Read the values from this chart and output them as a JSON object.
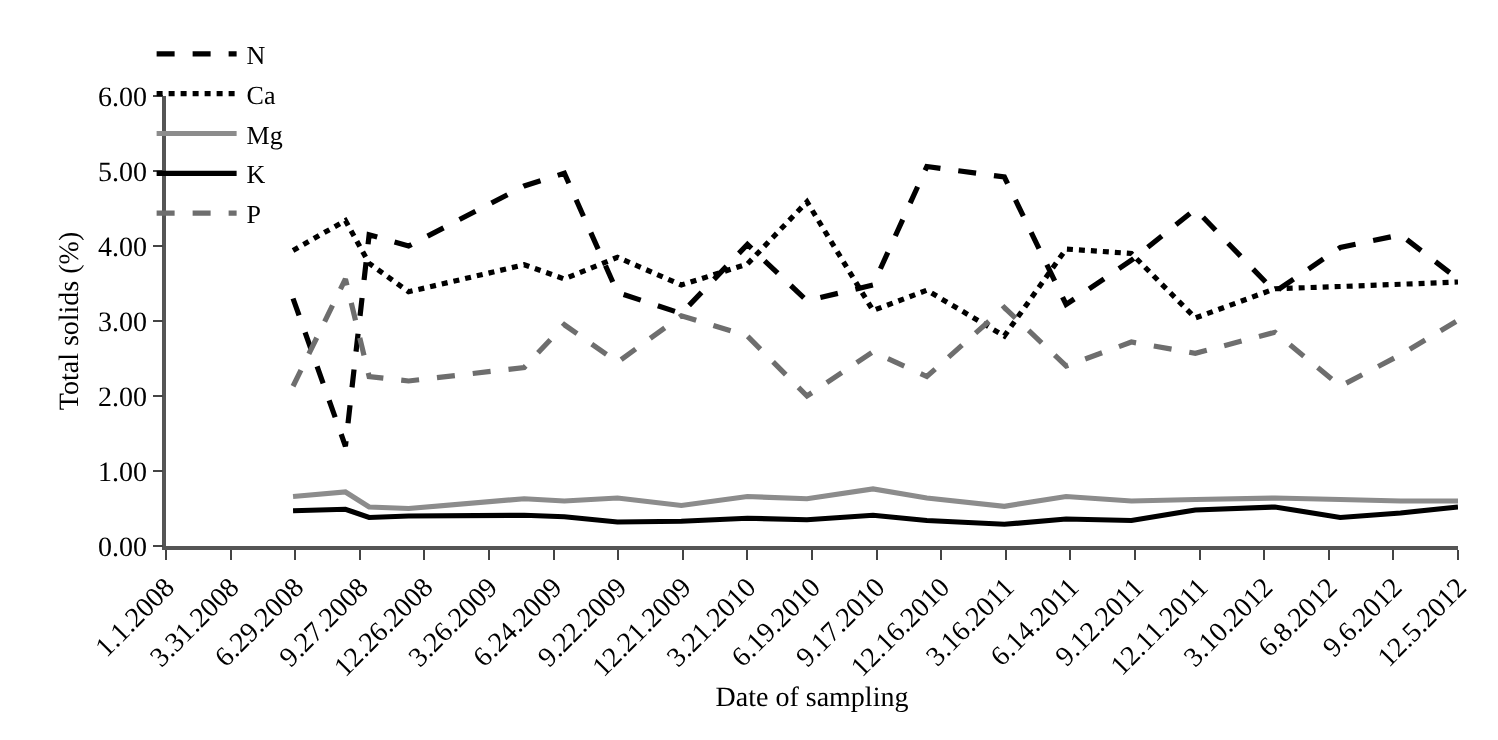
{
  "chart_data": {
    "type": "line",
    "xlabel": "Date of sampling",
    "ylabel": "Total solids (%)",
    "x": [
      "2008-06-26",
      "2008-09-07",
      "2008-10-10",
      "2008-12-04",
      "2009-05-14",
      "2009-07-09",
      "2009-09-21",
      "2009-12-19",
      "2010-03-21",
      "2010-06-12",
      "2010-09-12",
      "2010-11-26",
      "2011-03-14",
      "2011-06-08",
      "2011-09-07",
      "2011-12-05",
      "2012-03-25",
      "2012-06-24",
      "2012-09-16",
      "2012-12-05"
    ],
    "series": [
      {
        "name": "N",
        "color": "#000000",
        "line_style": "dashed",
        "values": [
          3.3,
          1.33,
          4.15,
          4.0,
          4.8,
          4.97,
          3.38,
          3.1,
          4.02,
          3.27,
          3.48,
          5.06,
          4.92,
          3.22,
          3.81,
          4.49,
          3.39,
          3.98,
          4.15,
          3.56
        ]
      },
      {
        "name": "Ca",
        "color": "#000000",
        "line_style": "dotted",
        "values": [
          3.94,
          4.34,
          3.77,
          3.39,
          3.75,
          3.56,
          3.85,
          3.48,
          3.76,
          4.59,
          3.14,
          3.41,
          2.8,
          3.96,
          3.9,
          3.04,
          3.43,
          3.46,
          3.49,
          3.52
        ]
      },
      {
        "name": "Mg",
        "color": "#8c8c8c",
        "line_style": "solid",
        "values": [
          0.66,
          0.72,
          0.52,
          0.5,
          0.63,
          0.6,
          0.64,
          0.54,
          0.66,
          0.63,
          0.76,
          0.64,
          0.53,
          0.66,
          0.6,
          0.62,
          0.64,
          0.62,
          0.6,
          0.6
        ]
      },
      {
        "name": "K",
        "color": "#000000",
        "line_style": "solid",
        "values": [
          0.47,
          0.49,
          0.38,
          0.4,
          0.41,
          0.39,
          0.32,
          0.33,
          0.37,
          0.35,
          0.41,
          0.34,
          0.29,
          0.36,
          0.34,
          0.48,
          0.52,
          0.38,
          0.44,
          0.52
        ]
      },
      {
        "name": "P",
        "color": "#6e6e6e",
        "line_style": "dashed",
        "values": [
          2.13,
          3.56,
          2.26,
          2.2,
          2.38,
          2.95,
          2.45,
          3.07,
          2.8,
          2.0,
          2.59,
          2.26,
          3.18,
          2.4,
          2.72,
          2.57,
          2.85,
          2.13,
          2.55,
          3.01
        ]
      }
    ],
    "xlim": [
      "2008-01-01",
      "2012-12-05"
    ],
    "xticks": [
      {
        "value": "2008-01-01",
        "label": "1.1.2008"
      },
      {
        "value": "2008-03-31",
        "label": "3.31.2008"
      },
      {
        "value": "2008-06-29",
        "label": "6.29.2008"
      },
      {
        "value": "2008-09-27",
        "label": "9.27.2008"
      },
      {
        "value": "2008-12-26",
        "label": "12.26.2008"
      },
      {
        "value": "2009-03-26",
        "label": "3.26.2009"
      },
      {
        "value": "2009-06-24",
        "label": "6.24.2009"
      },
      {
        "value": "2009-09-22",
        "label": "9.22.2009"
      },
      {
        "value": "2009-12-21",
        "label": "12.21.2009"
      },
      {
        "value": "2010-03-21",
        "label": "3.21.2010"
      },
      {
        "value": "2010-06-19",
        "label": "6.19.2010"
      },
      {
        "value": "2010-09-17",
        "label": "9.17.2010"
      },
      {
        "value": "2010-12-16",
        "label": "12.16.2010"
      },
      {
        "value": "2011-03-16",
        "label": "3.16.2011"
      },
      {
        "value": "2011-06-14",
        "label": "6.14.2011"
      },
      {
        "value": "2011-09-12",
        "label": "9.12.2011"
      },
      {
        "value": "2011-12-11",
        "label": "12.11.2011"
      },
      {
        "value": "2012-03-10",
        "label": "3.10.2012"
      },
      {
        "value": "2012-06-08",
        "label": "6.8.2012"
      },
      {
        "value": "2012-09-06",
        "label": "9.6.2012"
      },
      {
        "value": "2012-12-05",
        "label": "12.5.2012"
      }
    ],
    "ylim": [
      0,
      6
    ],
    "yticks": [
      {
        "value": 0,
        "label": "0.00"
      },
      {
        "value": 1,
        "label": "1.00"
      },
      {
        "value": 2,
        "label": "2.00"
      },
      {
        "value": 3,
        "label": "3.00"
      },
      {
        "value": 4,
        "label": "4.00"
      },
      {
        "value": 5,
        "label": "5.00"
      },
      {
        "value": 6,
        "label": "6.00"
      }
    ],
    "grid": false,
    "legend": "top left",
    "marker": "none"
  }
}
